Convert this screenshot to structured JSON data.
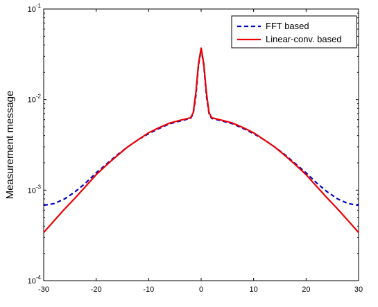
{
  "chart_data": {
    "type": "line",
    "title": "",
    "xlabel": "",
    "ylabel": "Measurement message",
    "xlim": [
      -30,
      30
    ],
    "ylim": [
      0.0001,
      0.1
    ],
    "yscale": "log",
    "grid": false,
    "legend_position": "top-right",
    "xticks": [
      "-30",
      "-20",
      "-10",
      "0",
      "10",
      "20",
      "30"
    ],
    "xtick_values": [
      -30,
      -20,
      -10,
      0,
      10,
      20,
      30
    ],
    "ytick_values": [
      0.0001,
      0.001,
      0.01,
      0.1
    ],
    "yticks": [
      {
        "base": "10",
        "exp": "-4"
      },
      {
        "base": "10",
        "exp": "-3"
      },
      {
        "base": "10",
        "exp": "-2"
      },
      {
        "base": "10",
        "exp": "-1"
      }
    ],
    "series": [
      {
        "name": "FFT based",
        "color": "#0000cc",
        "style": "dashed",
        "x": [
          -30,
          -28,
          -26,
          -24,
          -22,
          -20,
          -18,
          -16,
          -14,
          -12,
          -10,
          -8,
          -6,
          -4,
          -2,
          -1.5,
          -1,
          -0.5,
          0,
          0.5,
          1,
          1.5,
          2,
          4,
          6,
          8,
          10,
          12,
          14,
          16,
          18,
          20,
          22,
          24,
          26,
          28,
          30
        ],
        "y": [
          0.00068,
          0.00071,
          0.0008,
          0.00096,
          0.0012,
          0.00155,
          0.00195,
          0.00245,
          0.003,
          0.0036,
          0.0042,
          0.0048,
          0.0054,
          0.0058,
          0.0062,
          0.007,
          0.011,
          0.024,
          0.036,
          0.024,
          0.011,
          0.007,
          0.0062,
          0.0058,
          0.0054,
          0.0048,
          0.0042,
          0.0036,
          0.003,
          0.00245,
          0.00195,
          0.00155,
          0.0012,
          0.00096,
          0.0008,
          0.00071,
          0.00068
        ]
      },
      {
        "name": "Linear-conv. based",
        "color": "#ee0000",
        "style": "solid",
        "x": [
          -30,
          -28,
          -26,
          -24,
          -22,
          -20,
          -18,
          -16,
          -14,
          -12,
          -10,
          -8,
          -6,
          -4,
          -2,
          -1.5,
          -1,
          -0.5,
          0,
          0.5,
          1,
          1.5,
          2,
          4,
          6,
          8,
          10,
          12,
          14,
          16,
          18,
          20,
          22,
          24,
          26,
          28,
          30
        ],
        "y": [
          0.00034,
          0.00046,
          0.00062,
          0.00082,
          0.0011,
          0.00148,
          0.0019,
          0.0024,
          0.003,
          0.0036,
          0.0043,
          0.0049,
          0.0055,
          0.0059,
          0.0063,
          0.0072,
          0.012,
          0.025,
          0.037,
          0.025,
          0.012,
          0.0072,
          0.0063,
          0.0059,
          0.0055,
          0.0049,
          0.0043,
          0.0036,
          0.003,
          0.0024,
          0.0019,
          0.00148,
          0.0011,
          0.00082,
          0.00062,
          0.00046,
          0.00034
        ]
      }
    ]
  }
}
